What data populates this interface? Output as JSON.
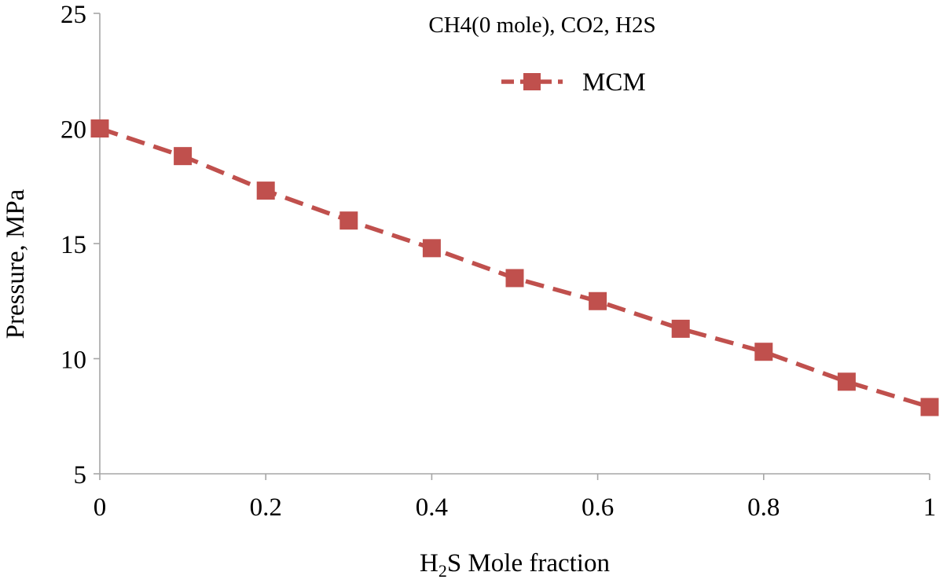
{
  "chart_data": {
    "type": "line",
    "title": "CH4(0 mole), CO2, H2S",
    "xlabel": {
      "prefix": "H",
      "subscript": "2",
      "suffix": "S Mole fraction"
    },
    "ylabel": "Pressure, MPa",
    "xlim": [
      0,
      1
    ],
    "ylim": [
      5,
      25
    ],
    "xticks": [
      0,
      0.2,
      0.4,
      0.6,
      0.8,
      1
    ],
    "xtick_labels": [
      "0",
      "0.2",
      "0.4",
      "0.6",
      "0.8",
      "1"
    ],
    "yticks": [
      5,
      10,
      15,
      20,
      25
    ],
    "ytick_labels": [
      "5",
      "10",
      "15",
      "20",
      "25"
    ],
    "grid": false,
    "legend_position": "top-center",
    "series": [
      {
        "name": "MCM",
        "color": "#c0504d",
        "line_style": "dashed",
        "marker": "square",
        "x": [
          0,
          0.1,
          0.2,
          0.3,
          0.4,
          0.5,
          0.6,
          0.7,
          0.8,
          0.9,
          1
        ],
        "y": [
          20.0,
          18.8,
          17.3,
          16.0,
          14.8,
          13.5,
          12.5,
          11.3,
          10.3,
          9.0,
          7.9
        ]
      }
    ]
  }
}
